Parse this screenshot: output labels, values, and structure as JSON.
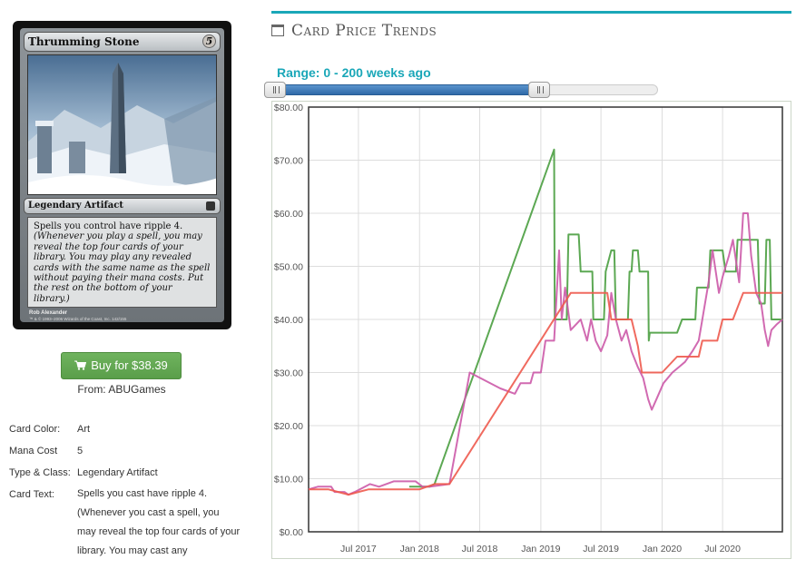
{
  "card": {
    "name": "Thrumming Stone",
    "mana_cost": "5",
    "type_line": "Legendary Artifact",
    "rules_text": "Spells you control have ripple 4.",
    "reminder_text": "(Whenever you play a spell, you may reveal the top four cards of your library. You may play any revealed cards with the same name as the spell without paying their mana costs. Put the rest on the bottom of your library.)",
    "artist": "Rob Alexander",
    "copyright": "™ & © 1993–2006 Wizards of the Coast, Inc. 142/155"
  },
  "buy": {
    "label": "Buy for $38.39",
    "from": "From: ABUGames"
  },
  "details": [
    {
      "label": "Card Color:",
      "value": "Art"
    },
    {
      "label": "Mana Cost",
      "value": "5"
    },
    {
      "label": "Type & Class:",
      "value": "Legendary Artifact"
    },
    {
      "label": "Card Text:",
      "value": "Spells you cast have ripple 4. (Whenever you cast a spell, you may reveal the top four cards of your library. You may cast any"
    }
  ],
  "chart_header": {
    "title": "Card Price Trends",
    "range_label": "Range: 0 - 200 weeks ago"
  },
  "range_slider": {
    "min": 0,
    "max": 200,
    "total_weeks_span": 290
  },
  "colors": {
    "accent": "#1aa7b8",
    "green": "#4a9e40",
    "pink": "#cc5aa8",
    "red": "#ee5a4e",
    "buy": "#6aab5a"
  },
  "chart_data": {
    "type": "line",
    "ylim": [
      0,
      80
    ],
    "yticks": [
      "$0.00",
      "$10.00",
      "$20.00",
      "$30.00",
      "$40.00",
      "$50.00",
      "$60.00",
      "$70.00",
      "$80.00"
    ],
    "xlim": [
      "2017-02-01",
      "2020-12-28"
    ],
    "xticks": [
      {
        "date": "2017-07-01",
        "label": "Jul 2017"
      },
      {
        "date": "2018-01-01",
        "label": "Jan 2018"
      },
      {
        "date": "2018-07-01",
        "label": "Jul 2018"
      },
      {
        "date": "2019-01-01",
        "label": "Jan 2019"
      },
      {
        "date": "2019-07-01",
        "label": "Jul 2019"
      },
      {
        "date": "2020-01-01",
        "label": "Jan 2020"
      },
      {
        "date": "2020-07-01",
        "label": "Jul 2020"
      }
    ],
    "grid": true,
    "series": [
      {
        "color": "#4a9e40",
        "points": [
          [
            "2017-12-01",
            8.5
          ],
          [
            "2018-02-01",
            8.5
          ],
          [
            "2018-02-15",
            9
          ],
          [
            "2019-02-10",
            72
          ],
          [
            "2019-02-12",
            40
          ],
          [
            "2019-03-01",
            40
          ],
          [
            "2019-03-20",
            40
          ],
          [
            "2019-03-25",
            56
          ],
          [
            "2019-04-25",
            56
          ],
          [
            "2019-05-01",
            49
          ],
          [
            "2019-06-05",
            49
          ],
          [
            "2019-06-08",
            40
          ],
          [
            "2019-07-10",
            40
          ],
          [
            "2019-07-15",
            49
          ],
          [
            "2019-08-01",
            53
          ],
          [
            "2019-08-10",
            53
          ],
          [
            "2019-08-15",
            40
          ],
          [
            "2019-09-20",
            40
          ],
          [
            "2019-09-25",
            49
          ],
          [
            "2019-10-01",
            49
          ],
          [
            "2019-10-05",
            53
          ],
          [
            "2019-10-20",
            53
          ],
          [
            "2019-10-25",
            49
          ],
          [
            "2019-11-20",
            49
          ],
          [
            "2019-11-22",
            36
          ],
          [
            "2019-11-25",
            37.5
          ],
          [
            "2020-02-15",
            37.5
          ],
          [
            "2020-03-01",
            40
          ],
          [
            "2020-04-10",
            40
          ],
          [
            "2020-04-15",
            46
          ],
          [
            "2020-05-20",
            46
          ],
          [
            "2020-05-25",
            53
          ],
          [
            "2020-07-01",
            53
          ],
          [
            "2020-07-10",
            49
          ],
          [
            "2020-08-10",
            49
          ],
          [
            "2020-08-15",
            55
          ],
          [
            "2020-10-15",
            55
          ],
          [
            "2020-10-20",
            43
          ],
          [
            "2020-11-05",
            43
          ],
          [
            "2020-11-10",
            55
          ],
          [
            "2020-11-20",
            55
          ],
          [
            "2020-11-25",
            40
          ],
          [
            "2020-12-28",
            40
          ]
        ]
      },
      {
        "color": "#cc5aa8",
        "points": [
          [
            "2017-02-01",
            8
          ],
          [
            "2017-03-01",
            8.5
          ],
          [
            "2017-04-10",
            8.5
          ],
          [
            "2017-04-20",
            7.5
          ],
          [
            "2017-05-20",
            7.5
          ],
          [
            "2017-06-01",
            7
          ],
          [
            "2017-06-20",
            7.5
          ],
          [
            "2017-07-05",
            8
          ],
          [
            "2017-08-05",
            9
          ],
          [
            "2017-09-01",
            8.5
          ],
          [
            "2017-10-15",
            9.5
          ],
          [
            "2017-12-20",
            9.5
          ],
          [
            "2018-01-10",
            8.5
          ],
          [
            "2018-02-01",
            8.5
          ],
          [
            "2018-04-01",
            9
          ],
          [
            "2018-06-01",
            30
          ],
          [
            "2018-09-01",
            27
          ],
          [
            "2018-10-15",
            26
          ],
          [
            "2018-11-01",
            28
          ],
          [
            "2018-12-01",
            28
          ],
          [
            "2018-12-10",
            30
          ],
          [
            "2019-01-01",
            30
          ],
          [
            "2019-01-15",
            36
          ],
          [
            "2019-02-10",
            36
          ],
          [
            "2019-02-25",
            53
          ],
          [
            "2019-03-05",
            40
          ],
          [
            "2019-03-15",
            46
          ],
          [
            "2019-04-01",
            38
          ],
          [
            "2019-05-01",
            40
          ],
          [
            "2019-05-20",
            36
          ],
          [
            "2019-06-01",
            40
          ],
          [
            "2019-06-15",
            36
          ],
          [
            "2019-07-01",
            34
          ],
          [
            "2019-07-20",
            37
          ],
          [
            "2019-08-01",
            45
          ],
          [
            "2019-08-15",
            40
          ],
          [
            "2019-09-01",
            36
          ],
          [
            "2019-09-15",
            38
          ],
          [
            "2019-10-01",
            34
          ],
          [
            "2019-10-20",
            31
          ],
          [
            "2019-11-05",
            29
          ],
          [
            "2019-11-20",
            25
          ],
          [
            "2019-12-01",
            23
          ],
          [
            "2019-12-15",
            25
          ],
          [
            "2020-01-05",
            28
          ],
          [
            "2020-02-01",
            30
          ],
          [
            "2020-02-20",
            31
          ],
          [
            "2020-03-10",
            32
          ],
          [
            "2020-04-01",
            34
          ],
          [
            "2020-04-20",
            36
          ],
          [
            "2020-05-01",
            40
          ],
          [
            "2020-05-20",
            47
          ],
          [
            "2020-06-01",
            53
          ],
          [
            "2020-06-20",
            45
          ],
          [
            "2020-07-01",
            48
          ],
          [
            "2020-07-20",
            52
          ],
          [
            "2020-08-01",
            55
          ],
          [
            "2020-08-20",
            47
          ],
          [
            "2020-09-01",
            60
          ],
          [
            "2020-09-15",
            60
          ],
          [
            "2020-09-25",
            52
          ],
          [
            "2020-10-10",
            45
          ],
          [
            "2020-10-25",
            43
          ],
          [
            "2020-11-05",
            38
          ],
          [
            "2020-11-15",
            35
          ],
          [
            "2020-11-25",
            38
          ],
          [
            "2020-12-10",
            39
          ],
          [
            "2020-12-28",
            40
          ]
        ]
      },
      {
        "color": "#ee5a4e",
        "points": [
          [
            "2017-02-01",
            8
          ],
          [
            "2017-04-01",
            8
          ],
          [
            "2017-05-01",
            7.5
          ],
          [
            "2017-06-01",
            7
          ],
          [
            "2017-07-01",
            7.5
          ],
          [
            "2017-08-01",
            8
          ],
          [
            "2018-01-01",
            8
          ],
          [
            "2018-02-15",
            9
          ],
          [
            "2018-04-01",
            9
          ],
          [
            "2019-04-01",
            45
          ],
          [
            "2019-07-01",
            45
          ],
          [
            "2019-07-20",
            45
          ],
          [
            "2019-08-01",
            40
          ],
          [
            "2019-10-01",
            40
          ],
          [
            "2019-10-20",
            35
          ],
          [
            "2019-11-01",
            30
          ],
          [
            "2020-01-01",
            30
          ],
          [
            "2020-02-15",
            33
          ],
          [
            "2020-04-20",
            33
          ],
          [
            "2020-05-01",
            36
          ],
          [
            "2020-06-15",
            36
          ],
          [
            "2020-07-01",
            40
          ],
          [
            "2020-08-01",
            40
          ],
          [
            "2020-09-01",
            45
          ],
          [
            "2020-12-28",
            45
          ]
        ]
      }
    ]
  }
}
